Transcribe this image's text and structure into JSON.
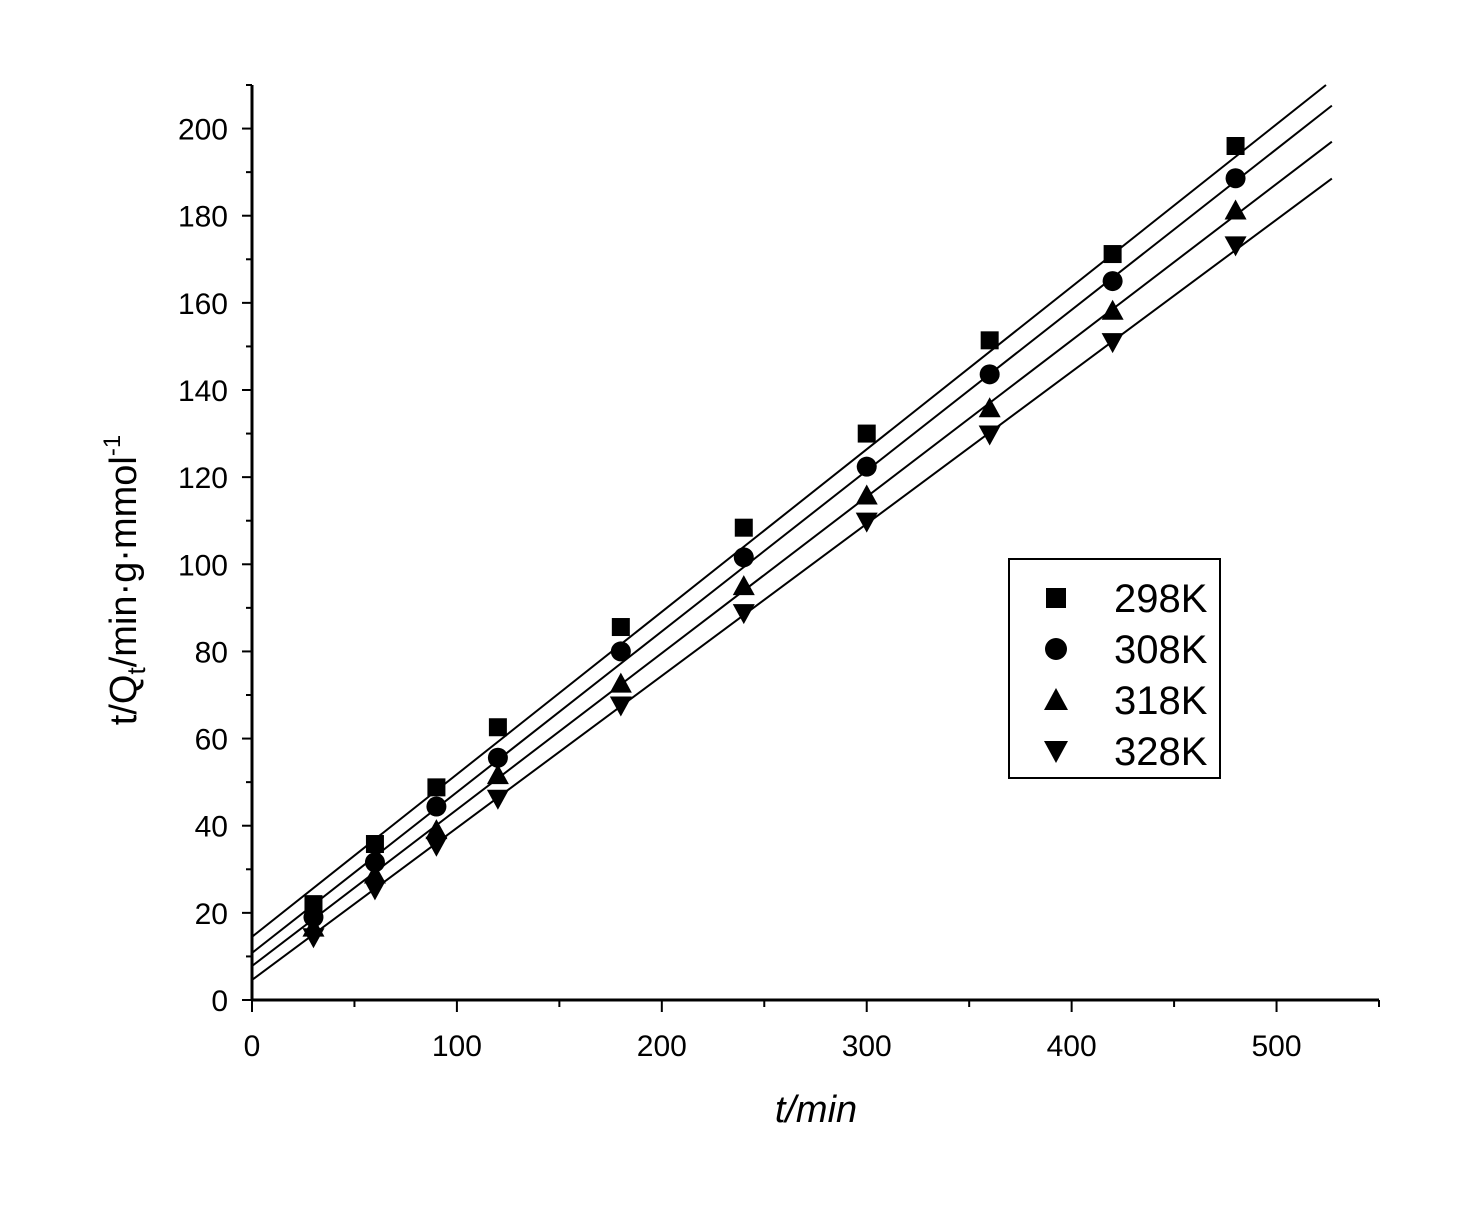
{
  "chart_data": {
    "type": "scatter",
    "title": "",
    "xlabel": "t/min",
    "ylabel": {
      "main": "t/Q",
      "sub": "t",
      "rest": "/min·g·mmol",
      "sup": "-1"
    },
    "xlim": [
      0,
      550
    ],
    "ylim": [
      0,
      210
    ],
    "x_ticks": [
      0,
      100,
      200,
      300,
      400,
      500
    ],
    "y_ticks": [
      0,
      20,
      40,
      60,
      80,
      100,
      120,
      140,
      160,
      180,
      200
    ],
    "grid": false,
    "legend_position": "center-right",
    "x": [
      30,
      60,
      90,
      120,
      180,
      240,
      300,
      360,
      420,
      480
    ],
    "series": [
      {
        "name": "298K",
        "marker": "square",
        "values": [
          22.0,
          35.8,
          48.8,
          62.6,
          85.6,
          108.4,
          130.0,
          151.4,
          171.2,
          196.0
        ],
        "fit": {
          "intercept": 14.5,
          "slope": 0.373,
          "x_range": [
            0,
            527
          ]
        }
      },
      {
        "name": "308K",
        "marker": "circle",
        "values": [
          19.0,
          31.6,
          44.4,
          55.6,
          80.0,
          101.6,
          122.4,
          143.6,
          165.0,
          188.6
        ],
        "fit": {
          "intercept": 10.8,
          "slope": 0.369,
          "x_range": [
            0,
            527
          ]
        }
      },
      {
        "name": "318K",
        "marker": "triangle-up",
        "values": [
          16.6,
          28.8,
          39.0,
          51.6,
          72.6,
          95.0,
          115.8,
          135.8,
          158.2,
          181.2
        ],
        "fit": {
          "intercept": 7.8,
          "slope": 0.359,
          "x_range": [
            0,
            527
          ]
        }
      },
      {
        "name": "328K",
        "marker": "triangle-down",
        "values": [
          14.4,
          25.4,
          35.4,
          46.2,
          67.6,
          88.8,
          109.8,
          129.8,
          151.0,
          173.2
        ],
        "fit": {
          "intercept": 4.6,
          "slope": 0.349,
          "x_range": [
            0,
            527
          ]
        }
      }
    ]
  }
}
